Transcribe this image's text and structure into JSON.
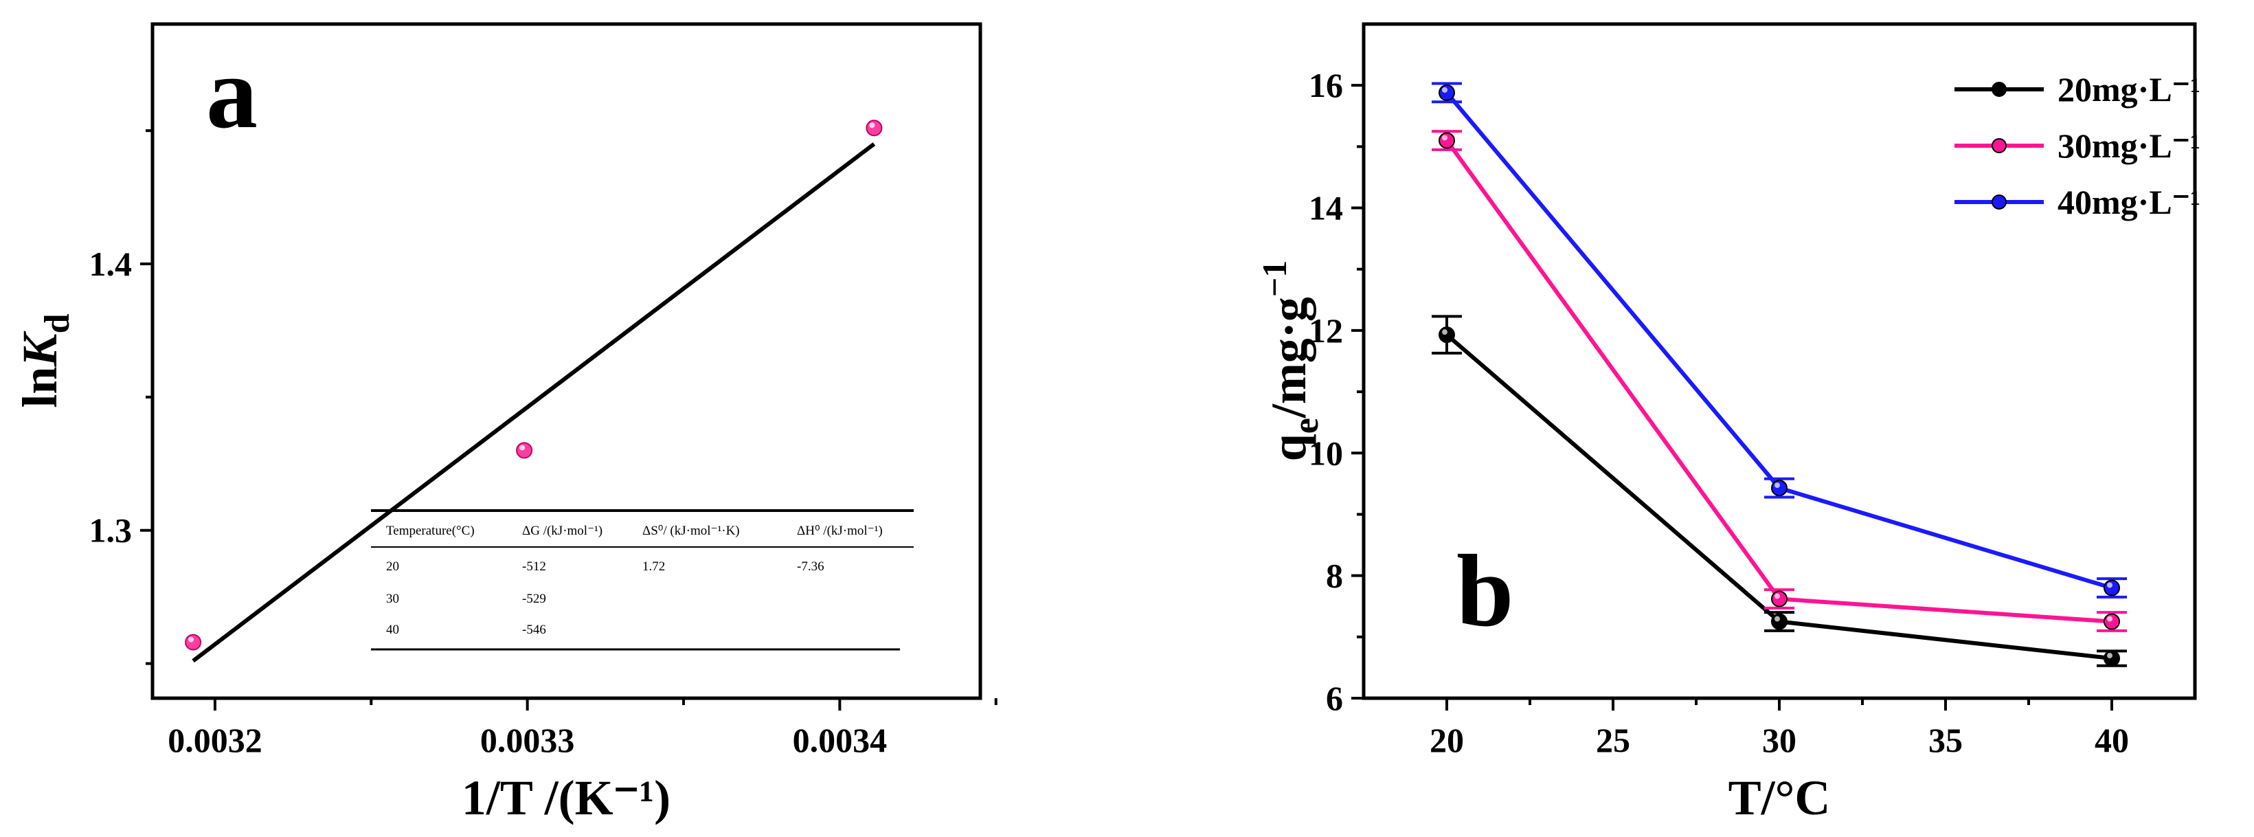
{
  "chart_data": [
    {
      "type": "scatter",
      "panel_label": "a",
      "xlabel": "1/T /(K⁻¹)",
      "ylabel": "lnK",
      "ylabel_sub": "d",
      "xlim": [
        0.00318,
        0.003445
      ],
      "ylim": [
        1.237,
        1.49
      ],
      "xticks": [
        0.0032,
        0.0033,
        0.0034
      ],
      "xtick_labels": [
        "0.0032",
        "0.0033",
        "0.0034"
      ],
      "yticks": [
        1.3,
        1.4
      ],
      "ytick_labels": [
        "1.3",
        "1.4"
      ],
      "series": [
        {
          "x": [
            0.003193,
            0.003299,
            0.003411
          ],
          "y": [
            1.258,
            1.33,
            1.451
          ],
          "color": "#ff3fa0"
        }
      ],
      "fit_line": {
        "x": [
          0.003193,
          0.003411
        ],
        "y": [
          1.251,
          1.445
        ],
        "color": "#000000"
      },
      "table": {
        "headers": [
          "Temperature(°C)",
          "ΔG /(kJ·mol⁻¹)",
          "ΔS⁰/ (kJ·mol⁻¹·K)",
          "ΔH⁰ /(kJ·mol⁻¹)"
        ],
        "rows": [
          [
            "20",
            "-512",
            "1.72",
            "-7.36"
          ],
          [
            "30",
            "-529",
            "",
            ""
          ],
          [
            "40",
            "-546",
            "",
            ""
          ]
        ]
      }
    },
    {
      "type": "line",
      "panel_label": "b",
      "xlabel": "T/°C",
      "ylabel": "q",
      "ylabel_sub": "e",
      "ylabel_rest": "/mg·g",
      "ylabel_sup": "−1",
      "xlim": [
        17.5,
        42.5
      ],
      "ylim": [
        6,
        17
      ],
      "xticks": [
        20,
        25,
        30,
        35,
        40
      ],
      "xtick_labels": [
        "20",
        "25",
        "30",
        "35",
        "40"
      ],
      "yticks": [
        6,
        8,
        10,
        12,
        14,
        16
      ],
      "ytick_labels": [
        "6",
        "8",
        "10",
        "12",
        "14",
        "16"
      ],
      "x": [
        20,
        30,
        40
      ],
      "legend_position": "top-right",
      "series": [
        {
          "name": "20mg·L⁻¹",
          "values": [
            11.93,
            7.25,
            6.65
          ],
          "errors": [
            0.3,
            0.15,
            0.12
          ],
          "color": "#000000"
        },
        {
          "name": "30mg·L⁻¹",
          "values": [
            15.1,
            7.62,
            7.25
          ],
          "errors": [
            0.15,
            0.15,
            0.15
          ],
          "color": "#ff1493"
        },
        {
          "name": "40mg·L⁻¹",
          "values": [
            15.88,
            9.43,
            7.8
          ],
          "errors": [
            0.15,
            0.15,
            0.15
          ],
          "color": "#1a1aff"
        }
      ]
    }
  ]
}
